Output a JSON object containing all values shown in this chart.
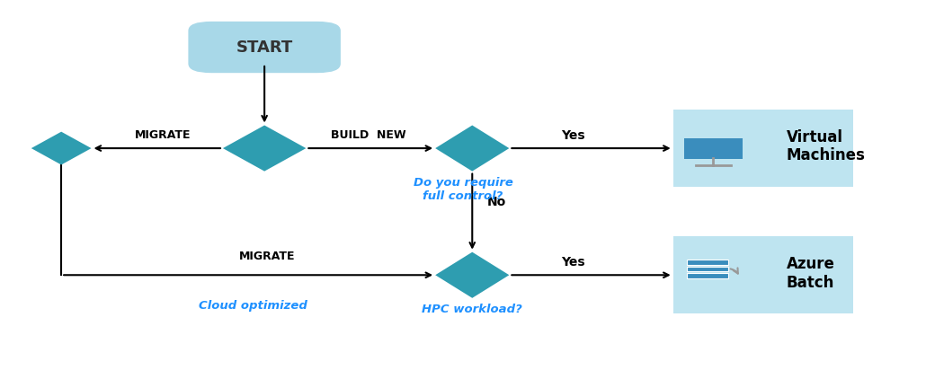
{
  "bg_color": "#ffffff",
  "diamond_color": "#2E9DB0",
  "start_color": "#A8D8E8",
  "box_color": "#BEE4F0",
  "arrow_color": "#000000",
  "italic_color": "#1E90FF",
  "text_color": "#000000",
  "start_text": "START",
  "migrate_top": "MIGRATE",
  "build_new": "BUILD  NEW",
  "yes_top": "Yes",
  "no_label": "No",
  "do_you": "Do you require\nfull control?",
  "yes_bottom": "Yes",
  "migrate_bottom": "MIGRATE",
  "cloud_optimized": "Cloud optimized",
  "hpc": "HPC workload?",
  "vm_title": "Virtual\nMachines",
  "batch_title": "Azure\nBatch"
}
